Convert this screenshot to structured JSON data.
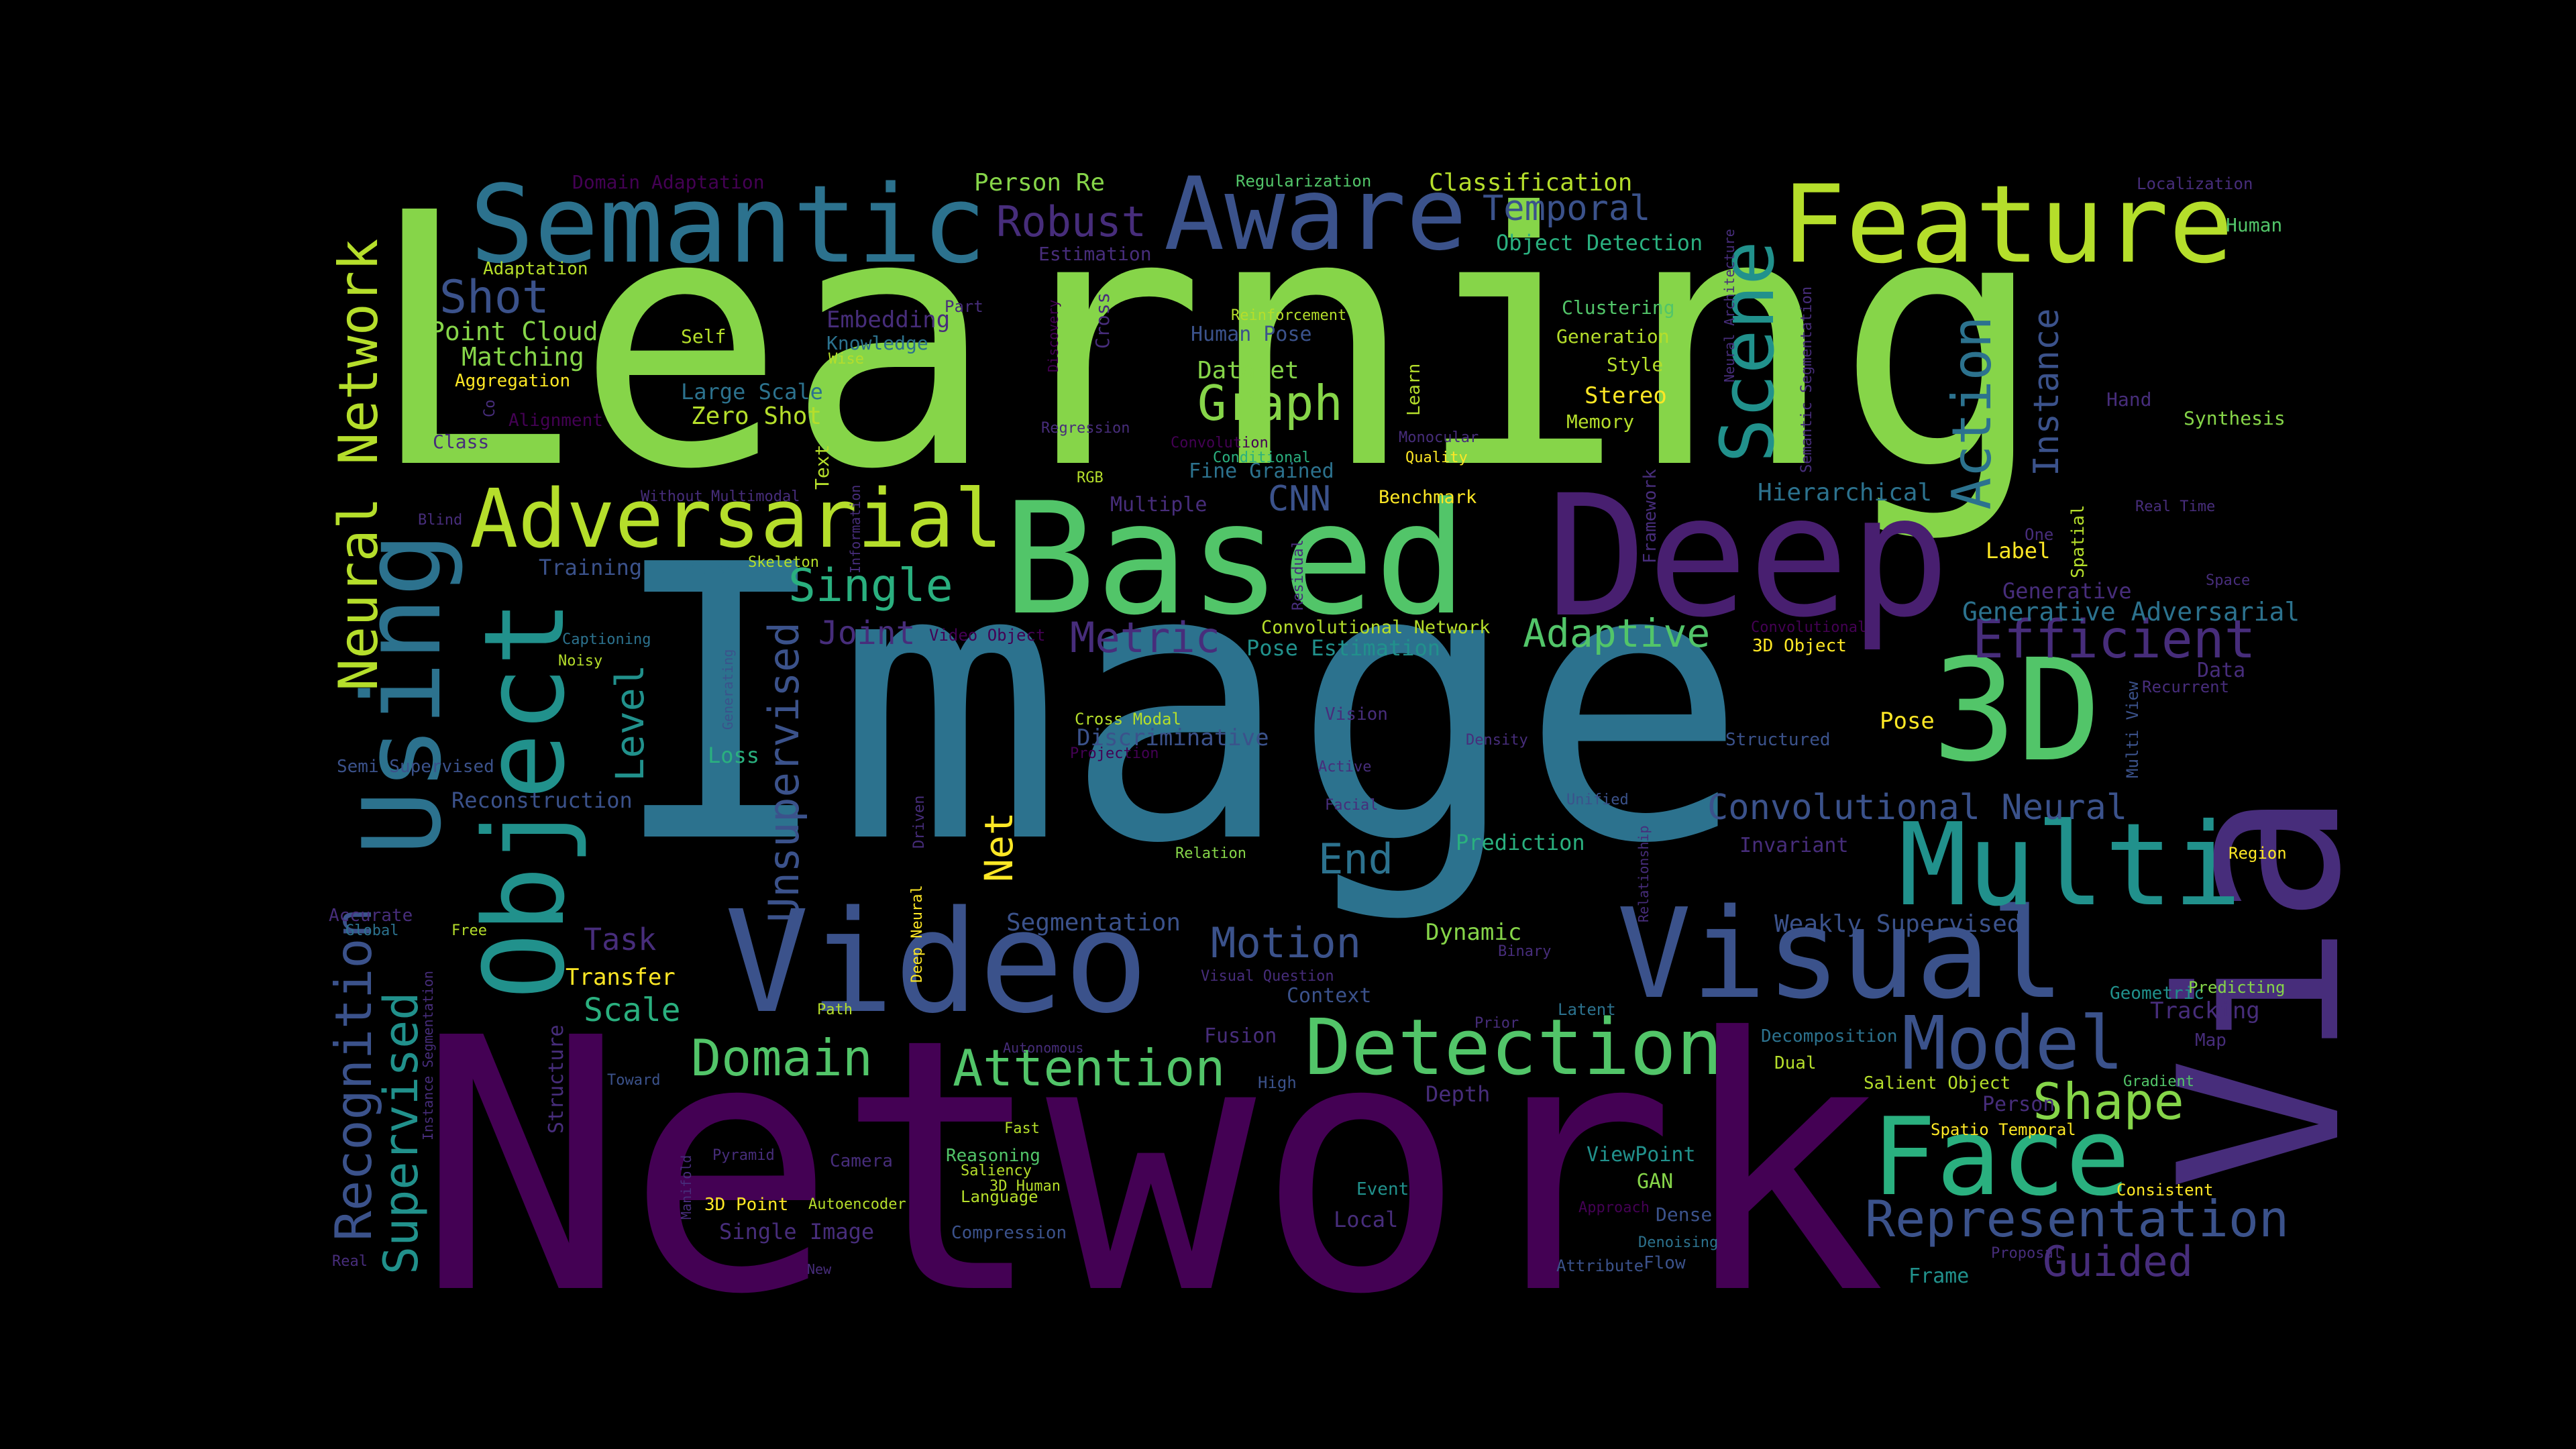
{
  "palette": {
    "bright_green": "#86d549",
    "lime": "#b5de2b",
    "yellow": "#fde725",
    "green": "#52c569",
    "teal_green": "#2ab07f",
    "teal": "#21918c",
    "steel_blue": "#2c728e",
    "blue": "#3b528b",
    "indigo": "#472d7b",
    "purple": "#440154",
    "dark_purple": "#481f70"
  },
  "words": [
    {
      "text": "Learning",
      "color": "#86d549"
    },
    {
      "text": "Image",
      "color": "#2c728e"
    },
    {
      "text": "Network",
      "color": "#440154"
    },
    {
      "text": "Via",
      "color": "#472d7b"
    },
    {
      "text": "Deep",
      "color": "#481f70"
    },
    {
      "text": "Based",
      "color": "#52c569"
    },
    {
      "text": "Video",
      "color": "#3b528b"
    },
    {
      "text": "Visual",
      "color": "#3b528b"
    },
    {
      "text": "Semantic",
      "color": "#2c728e"
    },
    {
      "text": "Feature",
      "color": "#b5de2b"
    },
    {
      "text": "Aware",
      "color": "#3b528b"
    },
    {
      "text": "Adversarial",
      "color": "#b5de2b"
    },
    {
      "text": "Object",
      "color": "#21918c"
    },
    {
      "text": "Using",
      "color": "#2c728e"
    },
    {
      "text": "3D",
      "color": "#52c569"
    },
    {
      "text": "Multi",
      "color": "#21918c"
    },
    {
      "text": "Face",
      "color": "#2ab07f"
    },
    {
      "text": "Detection",
      "color": "#52c569"
    },
    {
      "text": "Model",
      "color": "#3b528b"
    },
    {
      "text": "Scene",
      "color": "#21918c"
    },
    {
      "text": "Neural Network",
      "color": "#b5de2b"
    },
    {
      "text": "Recognition",
      "color": "#3b528b"
    },
    {
      "text": "Supervised",
      "color": "#21918c"
    },
    {
      "text": "Unsupervised",
      "color": "#3b528b"
    },
    {
      "text": "Domain",
      "color": "#52c569"
    },
    {
      "text": "Attention",
      "color": "#52c569"
    },
    {
      "text": "Representation",
      "color": "#3b528b"
    },
    {
      "text": "Shape",
      "color": "#86d549"
    },
    {
      "text": "Efficient",
      "color": "#472d7b"
    },
    {
      "text": "Convolutional Neural",
      "color": "#3b528b"
    },
    {
      "text": "Action",
      "color": "#2c728e"
    },
    {
      "text": "Instance",
      "color": "#3b528b"
    },
    {
      "text": "Motion",
      "color": "#3b528b"
    },
    {
      "text": "Guided",
      "color": "#472d7b"
    },
    {
      "text": "Graph",
      "color": "#86d549"
    },
    {
      "text": "Robust",
      "color": "#472d7b"
    },
    {
      "text": "Temporal",
      "color": "#3b528b"
    },
    {
      "text": "Shot",
      "color": "#3b528b"
    },
    {
      "text": "Single",
      "color": "#2ab07f"
    },
    {
      "text": "Metric",
      "color": "#472d7b"
    },
    {
      "text": "Adaptive",
      "color": "#52c569"
    },
    {
      "text": "End",
      "color": "#2c728e"
    },
    {
      "text": "Level",
      "color": "#21918c"
    },
    {
      "text": "Net",
      "color": "#fde725"
    },
    {
      "text": "CNN",
      "color": "#3b528b"
    },
    {
      "text": "Joint",
      "color": "#472d7b"
    },
    {
      "text": "Task",
      "color": "#472d7b"
    },
    {
      "text": "Scale",
      "color": "#2ab07f"
    },
    {
      "text": "Classification",
      "color": "#b5de2b"
    },
    {
      "text": "Person Re",
      "color": "#86d549"
    },
    {
      "text": "Object Detection",
      "color": "#2ab07f"
    },
    {
      "text": "Generative Adversarial",
      "color": "#2c728e"
    },
    {
      "text": "Weakly Supervised",
      "color": "#3b528b"
    },
    {
      "text": "Hierarchical",
      "color": "#2c728e"
    },
    {
      "text": "Point Cloud",
      "color": "#86d549"
    },
    {
      "text": "Matching",
      "color": "#86d549"
    },
    {
      "text": "Embedding",
      "color": "#472d7b"
    },
    {
      "text": "Large Scale",
      "color": "#2c728e"
    },
    {
      "text": "Zero Shot",
      "color": "#b5de2b"
    },
    {
      "text": "Dataset",
      "color": "#86d549"
    },
    {
      "text": "Fine Grained",
      "color": "#2c728e"
    },
    {
      "text": "Human Pose",
      "color": "#3b528b"
    },
    {
      "text": "Segmentation",
      "color": "#3b528b"
    },
    {
      "text": "Dynamic",
      "color": "#86d549"
    },
    {
      "text": "Prediction",
      "color": "#2ab07f"
    },
    {
      "text": "Reconstruction",
      "color": "#3b528b"
    },
    {
      "text": "Transfer",
      "color": "#fde725"
    },
    {
      "text": "Training",
      "color": "#3b528b"
    },
    {
      "text": "Pose",
      "color": "#fde725"
    },
    {
      "text": "Stereo",
      "color": "#fde725"
    },
    {
      "text": "Discriminative",
      "color": "#3b528b"
    },
    {
      "text": "Convolutional Network",
      "color": "#b5de2b"
    },
    {
      "text": "Pose Estimation",
      "color": "#21918c"
    },
    {
      "text": "Loss",
      "color": "#2ab07f"
    },
    {
      "text": "Context",
      "color": "#3b528b"
    },
    {
      "text": "Fusion",
      "color": "#472d7b"
    },
    {
      "text": "Depth",
      "color": "#472d7b"
    },
    {
      "text": "Local",
      "color": "#472d7b"
    },
    {
      "text": "GAN",
      "color": "#86d549"
    },
    {
      "text": "ViewPoint",
      "color": "#21918c"
    },
    {
      "text": "Single Image",
      "color": "#472d7b"
    },
    {
      "text": "Benchmark",
      "color": "#fde725"
    },
    {
      "text": "Multiple",
      "color": "#472d7b"
    },
    {
      "text": "Label",
      "color": "#fde725"
    },
    {
      "text": "Generative",
      "color": "#472d7b"
    },
    {
      "text": "Data",
      "color": "#472d7b"
    },
    {
      "text": "Invariant",
      "color": "#472d7b"
    },
    {
      "text": "Generation",
      "color": "#b5de2b"
    },
    {
      "text": "Style",
      "color": "#b5de2b"
    },
    {
      "text": "Memory",
      "color": "#b5de2b"
    },
    {
      "text": "Clustering",
      "color": "#52c569"
    },
    {
      "text": "Synthesis",
      "color": "#86d549"
    },
    {
      "text": "Hand",
      "color": "#472d7b"
    },
    {
      "text": "Human",
      "color": "#52c569"
    },
    {
      "text": "Localization",
      "color": "#472d7b"
    },
    {
      "text": "Region",
      "color": "#fde725"
    },
    {
      "text": "Geometric",
      "color": "#21918c"
    },
    {
      "text": "Predicting",
      "color": "#86d549"
    },
    {
      "text": "Tracking",
      "color": "#472d7b"
    },
    {
      "text": "Map",
      "color": "#472d7b"
    },
    {
      "text": "Person",
      "color": "#472d7b"
    },
    {
      "text": "Frame",
      "color": "#21918c"
    },
    {
      "text": "Dual",
      "color": "#b5de2b"
    },
    {
      "text": "Decomposition",
      "color": "#2c728e"
    },
    {
      "text": "Salient Object",
      "color": "#b5de2b"
    },
    {
      "text": "Spatio Temporal",
      "color": "#fde725"
    },
    {
      "text": "Consistent",
      "color": "#fde725"
    },
    {
      "text": "Structured",
      "color": "#3b528b"
    },
    {
      "text": "3D Object",
      "color": "#fde725"
    },
    {
      "text": "Multi View",
      "color": "#3b528b"
    },
    {
      "text": "Recurrent",
      "color": "#472d7b"
    },
    {
      "text": "Spatial",
      "color": "#b5de2b"
    },
    {
      "text": "One",
      "color": "#472d7b"
    },
    {
      "text": "Real Time",
      "color": "#472d7b"
    },
    {
      "text": "Space",
      "color": "#472d7b"
    },
    {
      "text": "Gradient",
      "color": "#52c569"
    },
    {
      "text": "Domain Adaptation",
      "color": "#440154"
    },
    {
      "text": "Adaptation",
      "color": "#b5de2b"
    },
    {
      "text": "Estimation",
      "color": "#472d7b"
    },
    {
      "text": "Regularization",
      "color": "#52c569"
    },
    {
      "text": "Knowledge",
      "color": "#2c728e"
    },
    {
      "text": "Self",
      "color": "#b5de2b"
    },
    {
      "text": "Wise",
      "color": "#b5de2b"
    },
    {
      "text": "Part",
      "color": "#472d7b"
    },
    {
      "text": "Cross",
      "color": "#472d7b"
    },
    {
      "text": "Discovery",
      "color": "#440154"
    },
    {
      "text": "Reinforcement",
      "color": "#b5de2b"
    },
    {
      "text": "Aggregation",
      "color": "#fde725"
    },
    {
      "text": "Alignment",
      "color": "#440154"
    },
    {
      "text": "Class",
      "color": "#472d7b"
    },
    {
      "text": "Co",
      "color": "#472d7b"
    },
    {
      "text": "Regression",
      "color": "#472d7b"
    },
    {
      "text": "Convolution",
      "color": "#440154"
    },
    {
      "text": "Conditional",
      "color": "#2ab07f"
    },
    {
      "text": "Monocular",
      "color": "#472d7b"
    },
    {
      "text": "Quality",
      "color": "#fde725"
    },
    {
      "text": "Learn",
      "color": "#b5de2b"
    },
    {
      "text": "Neural Architecture",
      "color": "#472d7b"
    },
    {
      "text": "Semantic Segmentation",
      "color": "#472d7b"
    },
    {
      "text": "Framework",
      "color": "#472d7b"
    },
    {
      "text": "Text",
      "color": "#b5de2b"
    },
    {
      "text": "Information",
      "color": "#472d7b"
    },
    {
      "text": "Residual",
      "color": "#472d7b"
    },
    {
      "text": "RGB",
      "color": "#b5de2b"
    },
    {
      "text": "Without",
      "color": "#472d7b"
    },
    {
      "text": "Multimodal",
      "color": "#472d7b"
    },
    {
      "text": "Blind",
      "color": "#472d7b"
    },
    {
      "text": "Sparse",
      "color": "#2c728e"
    },
    {
      "text": "Skeleton",
      "color": "#b5de2b"
    },
    {
      "text": "Captioning",
      "color": "#2c728e"
    },
    {
      "text": "Noisy",
      "color": "#b5de2b"
    },
    {
      "text": "Generating",
      "color": "#3b528b"
    },
    {
      "text": "Video Object",
      "color": "#440154"
    },
    {
      "text": "Convolutional",
      "color": "#440154"
    },
    {
      "text": "Cross Modal",
      "color": "#b5de2b"
    },
    {
      "text": "Projection",
      "color": "#440154"
    },
    {
      "text": "Vision",
      "color": "#472d7b"
    },
    {
      "text": "Active",
      "color": "#472d7b"
    },
    {
      "text": "Facial",
      "color": "#472d7b"
    },
    {
      "text": "Density",
      "color": "#472d7b"
    },
    {
      "text": "Unified",
      "color": "#3b528b"
    },
    {
      "text": "Relationship",
      "color": "#472d7b"
    },
    {
      "text": "Relation",
      "color": "#86d549"
    },
    {
      "text": "Semi Supervised",
      "color": "#3b528b"
    },
    {
      "text": "Accurate",
      "color": "#472d7b"
    },
    {
      "text": "Global",
      "color": "#2c728e"
    },
    {
      "text": "Free",
      "color": "#b5de2b"
    },
    {
      "text": "Driven",
      "color": "#472d7b"
    },
    {
      "text": "Deep Neural",
      "color": "#fde725"
    },
    {
      "text": "Binary",
      "color": "#472d7b"
    },
    {
      "text": "Visual Question",
      "color": "#472d7b"
    },
    {
      "text": "Latent",
      "color": "#2c728e"
    },
    {
      "text": "Prior",
      "color": "#472d7b"
    },
    {
      "text": "Path",
      "color": "#b5de2b"
    },
    {
      "text": "Autonomous",
      "color": "#472d7b"
    },
    {
      "text": "High",
      "color": "#3b528b"
    },
    {
      "text": "Instance Segmentation",
      "color": "#472d7b"
    },
    {
      "text": "Structure",
      "color": "#472d7b"
    },
    {
      "text": "Toward",
      "color": "#3b528b"
    },
    {
      "text": "Fast",
      "color": "#b5de2b"
    },
    {
      "text": "Pyramid",
      "color": "#472d7b"
    },
    {
      "text": "Camera",
      "color": "#472d7b"
    },
    {
      "text": "Reasoning",
      "color": "#52c569"
    },
    {
      "text": "Saliency",
      "color": "#b5de2b"
    },
    {
      "text": "3D Human",
      "color": "#b5de2b"
    },
    {
      "text": "Language",
      "color": "#b5de2b"
    },
    {
      "text": "3D Point",
      "color": "#fde725"
    },
    {
      "text": "Autoencoder",
      "color": "#b5de2b"
    },
    {
      "text": "Compression",
      "color": "#3b528b"
    },
    {
      "text": "Manifold",
      "color": "#472d7b"
    },
    {
      "text": "Real",
      "color": "#472d7b"
    },
    {
      "text": "New",
      "color": "#472d7b"
    },
    {
      "text": "Event",
      "color": "#21918c"
    },
    {
      "text": "Approach",
      "color": "#440154"
    },
    {
      "text": "Dense",
      "color": "#3b528b"
    },
    {
      "text": "Denoising",
      "color": "#2c728e"
    },
    {
      "text": "Attribute",
      "color": "#3b528b"
    },
    {
      "text": "Flow",
      "color": "#3b528b"
    },
    {
      "text": "Proposal",
      "color": "#472d7b"
    }
  ]
}
